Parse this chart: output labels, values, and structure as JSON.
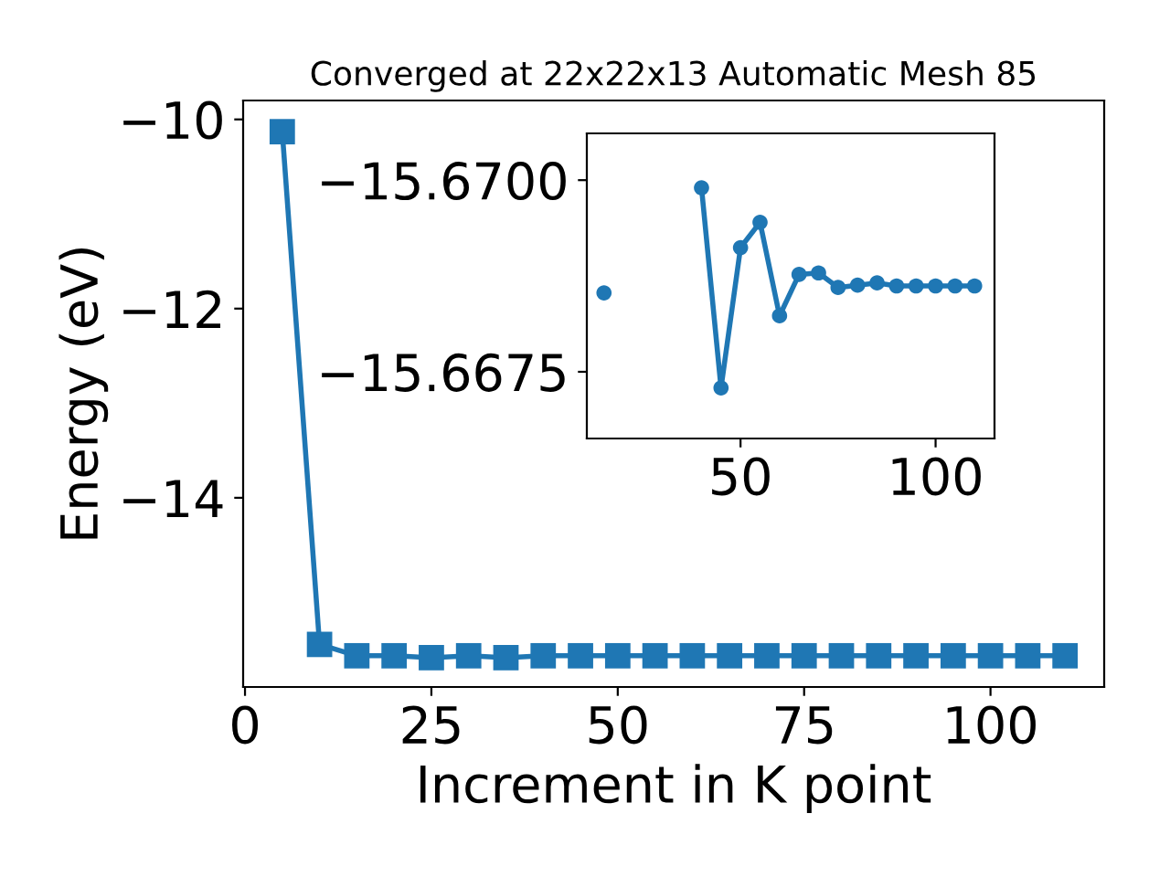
{
  "chart_data": [
    {
      "type": "line",
      "title": "Converged at 22x22x13 Automatic Mesh 85",
      "xlabel": "Increment in K point",
      "ylabel": "Energy (eV)",
      "x": [
        5,
        10,
        15,
        20,
        25,
        30,
        35,
        40,
        45,
        50,
        55,
        60,
        65,
        70,
        75,
        80,
        85,
        90,
        95,
        100,
        105,
        110
      ],
      "series": [
        {
          "color": "#1f77b4",
          "values": [
            -10.13,
            -15.55,
            -15.67,
            -15.67,
            -15.69,
            -15.67,
            -15.69,
            -15.67,
            -15.67,
            -15.67,
            -15.67,
            -15.67,
            -15.67,
            -15.67,
            -15.67,
            -15.67,
            -15.67,
            -15.67,
            -15.67,
            -15.67,
            -15.67,
            -15.67
          ]
        }
      ],
      "xlim": [
        -0.25,
        115.25
      ],
      "ylim": [
        -16.0,
        -9.8
      ],
      "xticks": [
        0,
        25,
        50,
        75,
        100
      ],
      "yticks": [
        {
          "value": -10,
          "label": "−10"
        },
        {
          "value": -12,
          "label": "−12"
        },
        {
          "value": -14,
          "label": "−14"
        }
      ],
      "marker": "square",
      "grid": false,
      "legend": false
    },
    {
      "type": "line",
      "x": [
        15,
        20,
        25,
        30,
        35,
        40,
        45,
        50,
        55,
        60,
        65,
        70,
        75,
        80,
        85,
        90,
        95,
        100,
        105,
        110
      ],
      "series": [
        {
          "color": "#1f77b4",
          "values": [
            -15.66853,
            null,
            null,
            null,
            null,
            -15.6699,
            -15.66729,
            -15.66912,
            -15.66945,
            -15.66823,
            -15.66877,
            -15.66879,
            -15.6686,
            -15.66863,
            -15.66866,
            -15.66862,
            -15.66862,
            -15.66862,
            -15.66862,
            -15.66862
          ]
        }
      ],
      "xlim": [
        10.6,
        115.1
      ],
      "ylim": [
        -15.66663,
        -15.67061
      ],
      "xticks": [
        50,
        100
      ],
      "yticks": [
        {
          "value": -15.67,
          "label": "−15.6700"
        },
        {
          "value": -15.6675,
          "label": "−15.6675"
        }
      ],
      "marker": "circle",
      "grid": false,
      "legend": false
    }
  ]
}
